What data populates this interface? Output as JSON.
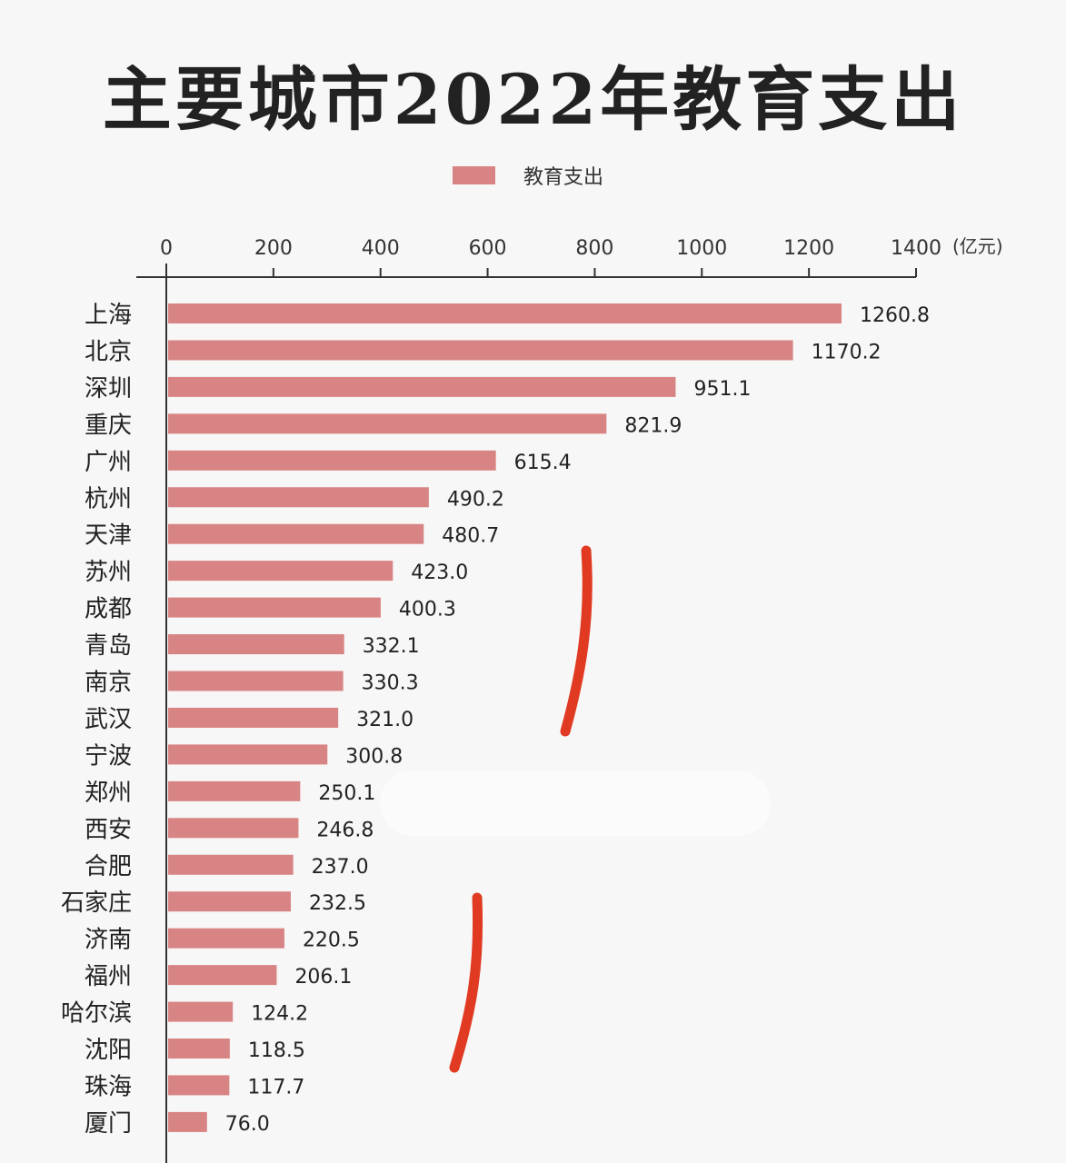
{
  "chart_data": {
    "type": "bar",
    "orientation": "horizontal",
    "title": "主要城市2022年教育支出",
    "unit": "(亿元)",
    "xlim": [
      0,
      1400
    ],
    "xticks": [
      0,
      200,
      400,
      600,
      800,
      1000,
      1200,
      1400
    ],
    "grid": false,
    "legend_position": "top",
    "categories": [
      "上海",
      "北京",
      "深圳",
      "重庆",
      "广州",
      "杭州",
      "天津",
      "苏州",
      "成都",
      "青岛",
      "南京",
      "武汉",
      "宁波",
      "郑州",
      "西安",
      "合肥",
      "石家庄",
      "济南",
      "福州",
      "哈尔滨",
      "沈阳",
      "珠海",
      "厦门"
    ],
    "series": [
      {
        "name": "教育支出",
        "color": "#d98484",
        "values": [
          1260.8,
          1170.2,
          951.1,
          821.9,
          615.4,
          490.2,
          480.7,
          423.0,
          400.3,
          332.1,
          330.3,
          321.0,
          300.8,
          250.1,
          246.8,
          237.0,
          232.5,
          220.5,
          206.1,
          124.2,
          118.5,
          117.7,
          76.0
        ]
      }
    ],
    "annotation_color": "#e03a22"
  }
}
